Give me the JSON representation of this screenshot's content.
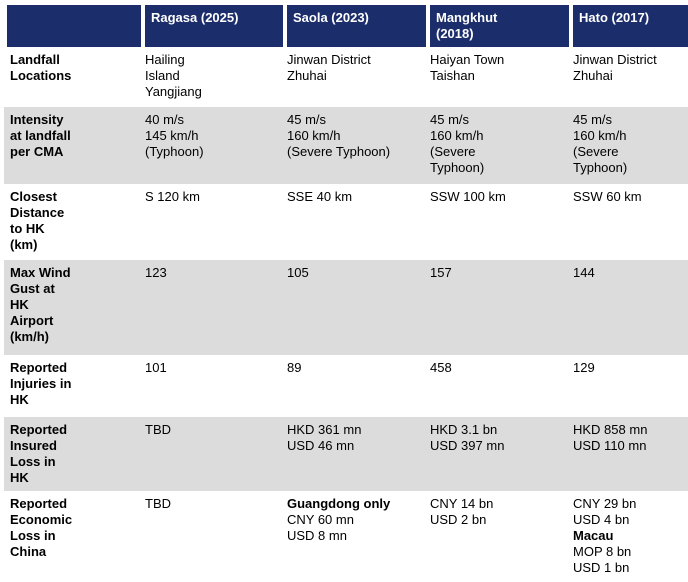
{
  "colors": {
    "header_bg": "#1b2d6b",
    "header_text": "#ffffff",
    "shaded_row_bg": "#dcdcdc",
    "body_text": "#000000"
  },
  "table": {
    "corner_label": "",
    "columns": [
      {
        "label_lines": [
          "Ragasa (2025)"
        ]
      },
      {
        "label_lines": [
          "Saola (2023)"
        ]
      },
      {
        "label_lines": [
          "Mangkhut",
          "(2018)"
        ]
      },
      {
        "label_lines": [
          "Hato (2017)"
        ]
      }
    ],
    "rows": [
      {
        "label_lines": [
          "Landfall",
          "Locations"
        ],
        "shaded": false,
        "cells": [
          {
            "lines": [
              "Hailing",
              "Island",
              "Yangjiang"
            ]
          },
          {
            "lines": [
              "Jinwan District",
              "Zhuhai"
            ]
          },
          {
            "lines": [
              "Haiyan Town",
              "Taishan"
            ]
          },
          {
            "lines": [
              "Jinwan District",
              "Zhuhai"
            ]
          }
        ]
      },
      {
        "label_lines": [
          "Intensity",
          "at landfall",
          "per CMA"
        ],
        "shaded": true,
        "cells": [
          {
            "lines": [
              "40 m/s",
              "145 km/h",
              "(Typhoon)"
            ]
          },
          {
            "lines": [
              "45 m/s",
              "160 km/h",
              "(Severe Typhoon)"
            ]
          },
          {
            "lines": [
              "45 m/s",
              "160 km/h",
              "(Severe",
              "Typhoon)"
            ]
          },
          {
            "lines": [
              "45 m/s",
              "160 km/h",
              "(Severe",
              "Typhoon)"
            ]
          }
        ]
      },
      {
        "label_lines": [
          "Closest",
          "Distance",
          "to HK",
          "(km)"
        ],
        "shaded": false,
        "cells": [
          {
            "lines": [
              "S 120 km"
            ]
          },
          {
            "lines": [
              "SSE 40 km"
            ]
          },
          {
            "lines": [
              "SSW 100 km"
            ]
          },
          {
            "lines": [
              "SSW 60 km"
            ]
          }
        ]
      },
      {
        "label_lines": [
          "Max Wind",
          "Gust at",
          "HK",
          "Airport",
          "(km/h)"
        ],
        "shaded": true,
        "cells": [
          {
            "lines": [
              "123"
            ]
          },
          {
            "lines": [
              "105"
            ]
          },
          {
            "lines": [
              "157"
            ]
          },
          {
            "lines": [
              "144"
            ]
          }
        ]
      },
      {
        "label_lines": [
          "Reported",
          "Injuries in",
          "HK"
        ],
        "shaded": false,
        "cells": [
          {
            "lines": [
              "101"
            ]
          },
          {
            "lines": [
              "89"
            ]
          },
          {
            "lines": [
              "458"
            ]
          },
          {
            "lines": [
              "129"
            ]
          }
        ]
      },
      {
        "label_lines": [
          "Reported",
          "Insured",
          "Loss in",
          "HK"
        ],
        "shaded": true,
        "cells": [
          {
            "lines": [
              "TBD"
            ]
          },
          {
            "lines": [
              "HKD 361 mn",
              "USD 46 mn"
            ]
          },
          {
            "lines": [
              "HKD 3.1 bn",
              "USD 397 mn"
            ]
          },
          {
            "lines": [
              "HKD 858 mn",
              "USD 110 mn"
            ]
          }
        ]
      },
      {
        "label_lines": [
          "Reported",
          "Economic",
          "Loss in",
          "China"
        ],
        "shaded": false,
        "cells": [
          {
            "lines": [
              "TBD"
            ]
          },
          {
            "lines": [
              {
                "text": "Guangdong only",
                "bold": true
              },
              "CNY 60 mn",
              "USD 8 mn"
            ]
          },
          {
            "lines": [
              "CNY 14 bn",
              "USD 2 bn"
            ]
          },
          {
            "lines": [
              "CNY 29 bn",
              "USD 4 bn",
              {
                "text": "Macau",
                "bold": true
              },
              "MOP 8 bn",
              "USD 1 bn"
            ]
          }
        ]
      }
    ]
  }
}
